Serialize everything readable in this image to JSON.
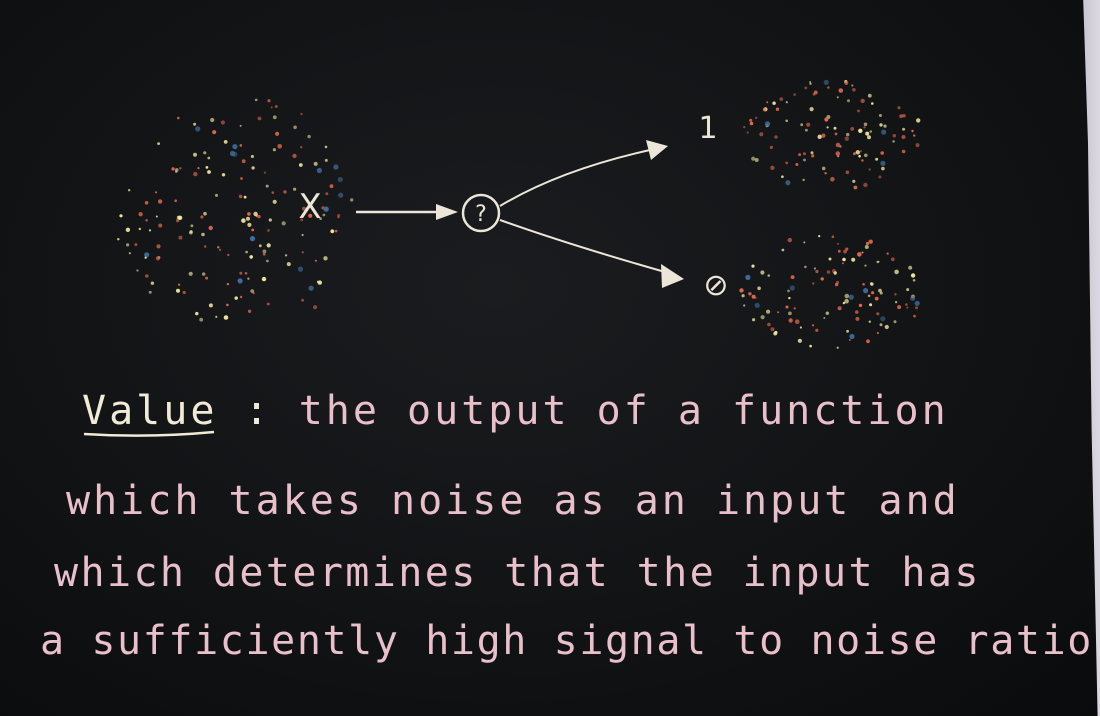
{
  "diagram": {
    "input_label": "X",
    "node_label": "?",
    "output_top_label": "1",
    "output_bottom_label": "⊘",
    "colors": {
      "chalk": "#ece6d8",
      "dot_orange": "#e0684a",
      "dot_yellow": "#f2e6a0",
      "dot_blue": "#3f6d9e",
      "text_pink": "#e9bfca",
      "background": "#111315"
    }
  },
  "definition": {
    "term": "Value",
    "separator": ":",
    "line1_rest": "the output of a function",
    "line2": "which takes noise as an input and",
    "line3": "which determines that the input has",
    "line4": "a sufficiently high signal to noise ratio."
  }
}
